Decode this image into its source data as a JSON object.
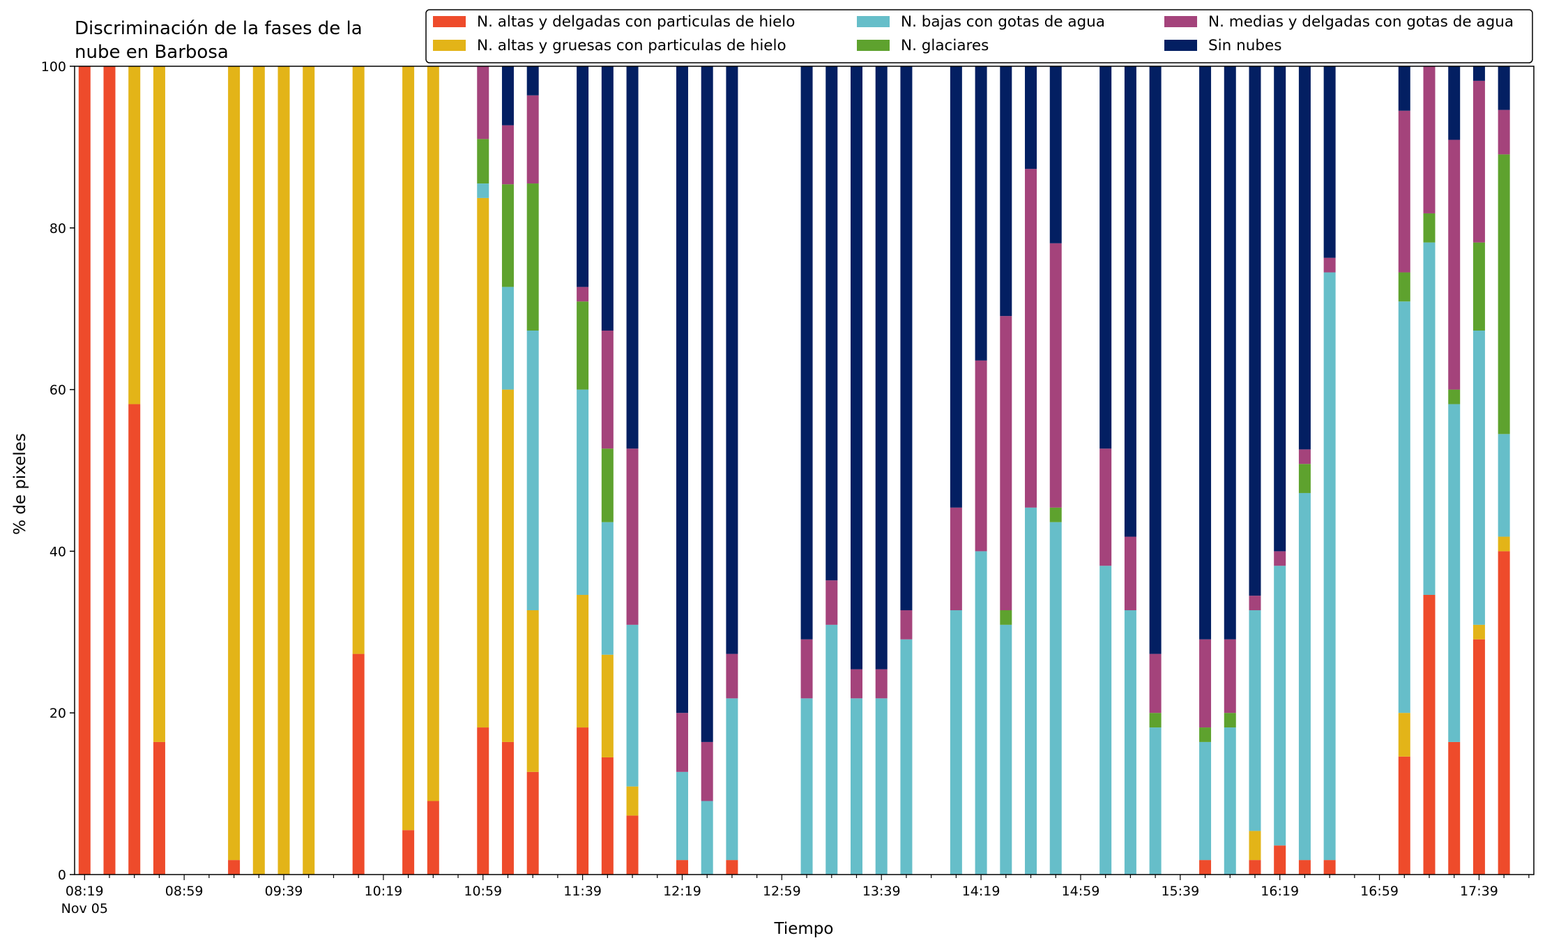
{
  "chart_data": {
    "type": "bar",
    "stacked": true,
    "title_lines": [
      "Discriminación de la fases de la",
      "nube en Barbosa"
    ],
    "xlabel": "Tiempo",
    "ylabel": "% de pixeles",
    "ylim": [
      0,
      100
    ],
    "yticks": [
      0,
      20,
      40,
      60,
      80,
      100
    ],
    "x_start": "08:19",
    "x_step_minutes": 10,
    "x_end": "17:59",
    "xtick_labels": [
      "08:19",
      "08:59",
      "09:39",
      "10:19",
      "10:59",
      "11:39",
      "12:19",
      "12:59",
      "13:39",
      "14:19",
      "14:59",
      "15:39",
      "16:19",
      "16:59",
      "17:39"
    ],
    "xtick_date": "Nov 05",
    "grid": false,
    "legend_position": "top-right",
    "series": [
      {
        "name": "N. altas y delgadas con particulas de hielo",
        "color": "#ee4b2b"
      },
      {
        "name": "N. altas y gruesas con particulas de hielo",
        "color": "#e3b418"
      },
      {
        "name": "N. bajas con gotas de agua",
        "color": "#66bec9"
      },
      {
        "name": "N. glaciares",
        "color": "#5ea22e"
      },
      {
        "name": "N. medias y delgadas con gotas de agua",
        "color": "#a4437b"
      },
      {
        "name": "Sin nubes",
        "color": "#031f62"
      }
    ],
    "bars": [
      {
        "time": "08:19",
        "values": [
          100,
          0,
          0,
          0,
          0,
          0
        ]
      },
      {
        "time": "08:29",
        "values": [
          100,
          0,
          0,
          0,
          0,
          0
        ]
      },
      {
        "time": "08:39",
        "values": [
          58.2,
          41.8,
          0,
          0,
          0,
          0
        ]
      },
      {
        "time": "08:49",
        "values": [
          16.4,
          83.6,
          0,
          0,
          0,
          0
        ]
      },
      {
        "time": "09:19",
        "values": [
          1.8,
          98.2,
          0,
          0,
          0,
          0
        ]
      },
      {
        "time": "09:29",
        "values": [
          0,
          100,
          0,
          0,
          0,
          0
        ]
      },
      {
        "time": "09:39",
        "values": [
          0,
          100,
          0,
          0,
          0,
          0
        ]
      },
      {
        "time": "09:49",
        "values": [
          0,
          100,
          0,
          0,
          0,
          0
        ]
      },
      {
        "time": "10:09",
        "values": [
          27.3,
          72.7,
          0,
          0,
          0,
          0
        ]
      },
      {
        "time": "10:29",
        "values": [
          5.5,
          94.5,
          0,
          0,
          0,
          0
        ]
      },
      {
        "time": "10:39",
        "values": [
          9.1,
          90.9,
          0,
          0,
          0,
          0
        ]
      },
      {
        "time": "10:59",
        "values": [
          18.2,
          65.5,
          1.8,
          5.5,
          9.0,
          0
        ]
      },
      {
        "time": "11:09",
        "values": [
          16.4,
          43.6,
          12.7,
          12.7,
          7.3,
          7.3
        ]
      },
      {
        "time": "11:19",
        "values": [
          12.7,
          20.0,
          34.6,
          18.2,
          10.9,
          3.6
        ]
      },
      {
        "time": "11:39",
        "values": [
          18.2,
          16.4,
          25.4,
          10.9,
          1.8,
          27.3
        ]
      },
      {
        "time": "11:49",
        "values": [
          14.5,
          12.7,
          16.4,
          9.1,
          14.6,
          32.7
        ]
      },
      {
        "time": "11:59",
        "values": [
          7.3,
          3.6,
          20.0,
          0,
          21.8,
          47.3
        ]
      },
      {
        "time": "12:19",
        "values": [
          1.8,
          0,
          10.9,
          0,
          7.3,
          80.0
        ]
      },
      {
        "time": "12:29",
        "values": [
          0,
          0,
          9.1,
          0,
          7.3,
          83.6
        ]
      },
      {
        "time": "12:39",
        "values": [
          1.8,
          0,
          20.0,
          0,
          5.5,
          72.7
        ]
      },
      {
        "time": "13:09",
        "values": [
          0,
          0,
          21.8,
          0,
          7.3,
          70.9
        ]
      },
      {
        "time": "13:19",
        "values": [
          0,
          0,
          30.9,
          0,
          5.5,
          63.6
        ]
      },
      {
        "time": "13:29",
        "values": [
          0,
          0,
          21.8,
          0,
          3.6,
          74.6
        ]
      },
      {
        "time": "13:39",
        "values": [
          0,
          0,
          21.8,
          0,
          3.6,
          74.6
        ]
      },
      {
        "time": "13:49",
        "values": [
          0,
          0,
          29.1,
          0,
          3.6,
          67.3
        ]
      },
      {
        "time": "14:09",
        "values": [
          0,
          0,
          32.7,
          0,
          12.7,
          54.6
        ]
      },
      {
        "time": "14:19",
        "values": [
          0,
          0,
          40.0,
          0,
          23.6,
          36.4
        ]
      },
      {
        "time": "14:29",
        "values": [
          0,
          0,
          30.9,
          1.8,
          36.4,
          30.9
        ]
      },
      {
        "time": "14:39",
        "values": [
          0,
          0,
          45.4,
          0,
          41.9,
          12.7
        ]
      },
      {
        "time": "14:49",
        "values": [
          0,
          0,
          43.6,
          1.8,
          32.7,
          21.9
        ]
      },
      {
        "time": "15:09",
        "values": [
          0,
          0,
          38.2,
          0,
          14.5,
          47.3
        ]
      },
      {
        "time": "15:19",
        "values": [
          0,
          0,
          32.7,
          0,
          9.1,
          58.2
        ]
      },
      {
        "time": "15:29",
        "values": [
          0,
          0,
          18.2,
          1.8,
          7.3,
          72.7
        ]
      },
      {
        "time": "15:49",
        "values": [
          1.8,
          0,
          14.6,
          1.8,
          10.9,
          70.9
        ]
      },
      {
        "time": "15:59",
        "values": [
          0,
          0,
          18.2,
          1.8,
          9.1,
          70.9
        ]
      },
      {
        "time": "16:09",
        "values": [
          1.8,
          3.6,
          27.3,
          0,
          1.8,
          65.5
        ]
      },
      {
        "time": "16:19",
        "values": [
          3.6,
          0,
          34.6,
          0,
          1.8,
          60.0
        ]
      },
      {
        "time": "16:29",
        "values": [
          1.8,
          0,
          45.4,
          3.6,
          1.8,
          47.4
        ]
      },
      {
        "time": "16:39",
        "values": [
          1.8,
          0,
          72.7,
          0,
          1.8,
          23.7
        ]
      },
      {
        "time": "17:09",
        "values": [
          14.6,
          5.4,
          50.9,
          3.6,
          20.0,
          5.5
        ]
      },
      {
        "time": "17:19",
        "values": [
          34.6,
          0,
          43.6,
          3.6,
          18.2,
          0
        ]
      },
      {
        "time": "17:29",
        "values": [
          16.4,
          0,
          41.8,
          1.8,
          30.9,
          9.1
        ]
      },
      {
        "time": "17:39",
        "values": [
          29.1,
          1.8,
          36.4,
          10.9,
          20.0,
          1.8
        ]
      },
      {
        "time": "17:49",
        "values": [
          40.0,
          1.8,
          12.7,
          34.6,
          5.5,
          5.4
        ]
      }
    ]
  }
}
